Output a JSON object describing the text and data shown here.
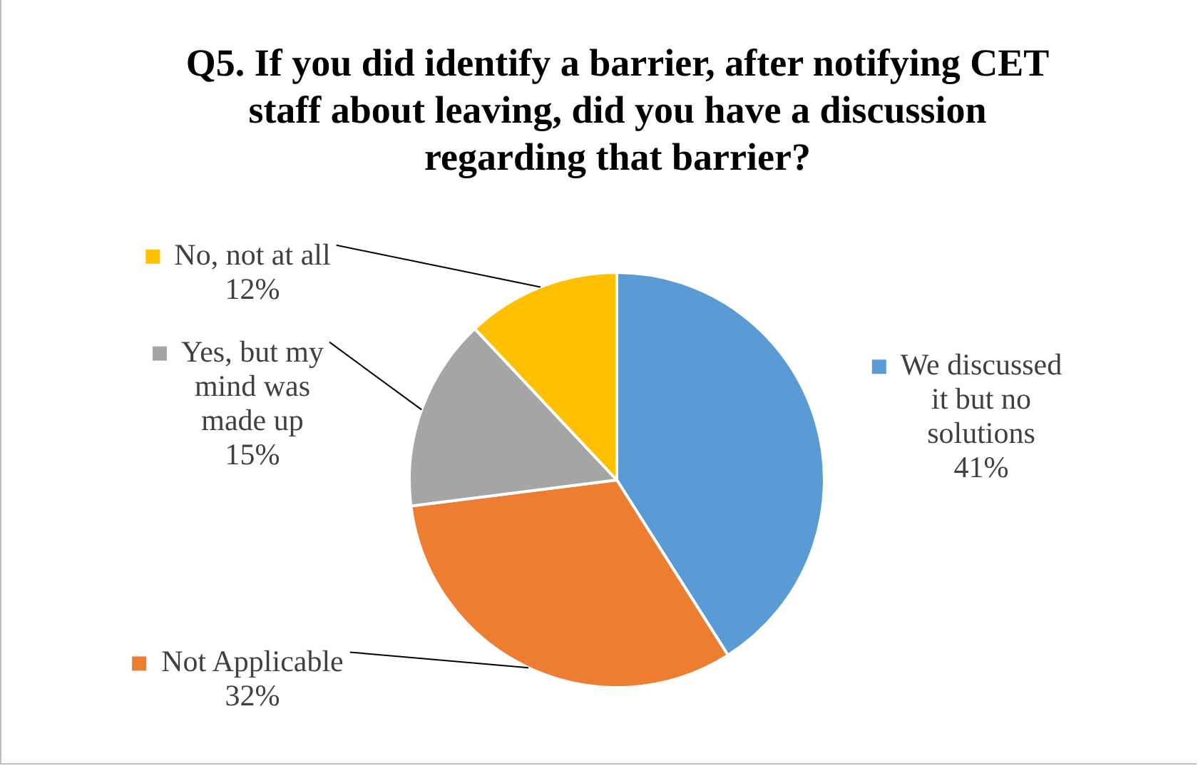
{
  "chart_data": {
    "type": "pie",
    "title": "Q5. If you did identify a barrier, after notifying CET staff about leaving, did you have a discussion regarding that barrier?",
    "categories": [
      "We discussed it but no solutions",
      "Not Applicable",
      "Yes, but my mind was made up",
      "No, not at all"
    ],
    "values": [
      41,
      32,
      15,
      12
    ],
    "colors": [
      "#5b9bd5",
      "#ed7d31",
      "#a5a5a5",
      "#ffc000"
    ],
    "value_labels": [
      "41%",
      "32%",
      "15%",
      "12%"
    ],
    "legend": "right"
  }
}
